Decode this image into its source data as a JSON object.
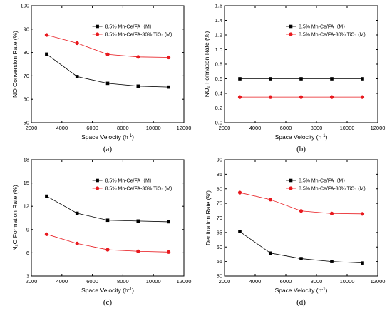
{
  "chart_data": [
    {
      "panel_label": "(a)",
      "type": "line",
      "xlabel": "Space Velocity (h⁻¹)",
      "ylabel": "NO Conversion Rate (%)",
      "xlim": [
        2000,
        12000
      ],
      "ylim": [
        50,
        100
      ],
      "xticks": [
        2000,
        4000,
        6000,
        8000,
        10000,
        12000
      ],
      "yticks": [
        50,
        60,
        70,
        80,
        90,
        100
      ],
      "x": [
        3000,
        5000,
        7000,
        9000,
        11000
      ],
      "legend_position": "upper-right",
      "series": [
        {
          "name": "8.5% Mn-Ce/FA（M）",
          "marker": "square",
          "color": "#000000",
          "values": [
            79.3,
            69.7,
            66.8,
            65.6,
            65.2
          ]
        },
        {
          "name": "8.5% Mn-Ce/FA-30% TiO₂ (M)",
          "marker": "circle",
          "color": "#e8191e",
          "values": [
            87.5,
            84.0,
            79.2,
            78.1,
            77.9
          ]
        }
      ]
    },
    {
      "panel_label": "(b)",
      "type": "line",
      "xlabel": "Space Velocity (h⁻¹)",
      "ylabel": "NO₂ Formation Rate (%)",
      "xlim": [
        2000,
        12000
      ],
      "ylim": [
        0.0,
        1.6
      ],
      "xticks": [
        2000,
        4000,
        6000,
        8000,
        10000,
        12000
      ],
      "yticks": [
        0.0,
        0.2,
        0.4,
        0.6,
        0.8,
        1.0,
        1.2,
        1.4,
        1.6
      ],
      "x": [
        3000,
        5000,
        7000,
        9000,
        11000
      ],
      "legend_position": "upper-right",
      "series": [
        {
          "name": "8.5% Mn-Ce/FA（M）",
          "marker": "square",
          "color": "#000000",
          "values": [
            0.6,
            0.6,
            0.6,
            0.6,
            0.6
          ]
        },
        {
          "name": "8.5% Mn-Ce/FA-30% TiO₂ (M)",
          "marker": "circle",
          "color": "#e8191e",
          "values": [
            0.35,
            0.35,
            0.35,
            0.35,
            0.35
          ]
        }
      ]
    },
    {
      "panel_label": "(c)",
      "type": "line",
      "xlabel": "Space Velocity (h⁻¹)",
      "ylabel": "N₂O Formation Rate (%)",
      "xlim": [
        2000,
        12000
      ],
      "ylim": [
        3,
        18
      ],
      "xticks": [
        2000,
        4000,
        6000,
        8000,
        10000,
        12000
      ],
      "yticks": [
        3,
        6,
        9,
        12,
        15,
        18
      ],
      "x": [
        3000,
        5000,
        7000,
        9000,
        11000
      ],
      "legend_position": "upper-right",
      "series": [
        {
          "name": "8.5% Mn-Ce/FA（M）",
          "marker": "square",
          "color": "#000000",
          "values": [
            13.3,
            11.1,
            10.2,
            10.1,
            10.0
          ]
        },
        {
          "name": "8.5% Mn-Ce/FA-30% TiO₂ (M)",
          "marker": "circle",
          "color": "#e8191e",
          "values": [
            8.4,
            7.2,
            6.4,
            6.2,
            6.1
          ]
        }
      ]
    },
    {
      "panel_label": "(d)",
      "type": "line",
      "xlabel": "Space Velocity (h⁻¹)",
      "ylabel": "Denitration Rate (%)",
      "xlim": [
        2000,
        12000
      ],
      "ylim": [
        50,
        90
      ],
      "xticks": [
        2000,
        4000,
        6000,
        8000,
        10000,
        12000
      ],
      "yticks": [
        50,
        55,
        60,
        65,
        70,
        75,
        80,
        85,
        90
      ],
      "x": [
        3000,
        5000,
        7000,
        9000,
        11000
      ],
      "legend_position": "upper-right",
      "series": [
        {
          "name": "8.5% Mn-Ce/FA（M）",
          "marker": "square",
          "color": "#000000",
          "values": [
            65.3,
            57.9,
            56.0,
            55.0,
            54.5
          ]
        },
        {
          "name": "8.5% Mn-Ce/FA-30% TiO₂ (M)",
          "marker": "circle",
          "color": "#e8191e",
          "values": [
            78.7,
            76.3,
            72.4,
            71.5,
            71.4
          ]
        }
      ]
    }
  ]
}
